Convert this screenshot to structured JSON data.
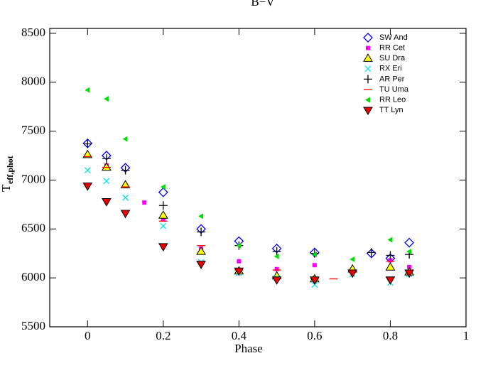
{
  "chart_data": {
    "type": "scatter",
    "title": "B−V",
    "x_label": "Phase",
    "y_label": "T",
    "y_label_sub": "eff,phot",
    "xlim": [
      -0.1,
      1.0
    ],
    "ylim": [
      5500,
      8550
    ],
    "xticks": [
      0,
      0.2,
      0.4,
      0.6,
      0.8,
      1
    ],
    "yticks": [
      5500,
      6000,
      6500,
      7000,
      7500,
      8000,
      8500
    ],
    "legend": "upper right",
    "series": [
      {
        "name": "SW And",
        "color": "#0000ff",
        "marker": "diamond",
        "x": [
          0,
          0.05,
          0.1,
          0.2,
          0.3,
          0.4,
          0.5,
          0.6,
          0.75,
          0.8,
          0.85
        ],
        "values": [
          7375,
          7250,
          7125,
          6875,
          6500,
          6375,
          6300,
          6260,
          6250,
          6200,
          6360
        ]
      },
      {
        "name": "RR Cet",
        "color": "#ff00ff",
        "marker": "square",
        "x": [
          0,
          0.05,
          0.1,
          0.15,
          0.2,
          0.3,
          0.4,
          0.5,
          0.6,
          0.7,
          0.8,
          0.85
        ],
        "values": [
          7250,
          7150,
          6950,
          6770,
          6600,
          6300,
          6170,
          6090,
          6130,
          6060,
          6180,
          6110
        ]
      },
      {
        "name": "SU Dra",
        "color": "#ffff00",
        "marker": "triangle-up",
        "x": [
          0,
          0.05,
          0.1,
          0.2,
          0.3,
          0.4,
          0.5,
          0.6,
          0.7,
          0.8,
          0.85
        ],
        "values": [
          7260,
          7130,
          6950,
          6640,
          6270,
          6070,
          6020,
          5990,
          6090,
          6110,
          6060
        ]
      },
      {
        "name": "RX Eri",
        "color": "#00e5ee",
        "marker": "x",
        "x": [
          0,
          0.05,
          0.1,
          0.2,
          0.3,
          0.4,
          0.5,
          0.6,
          0.7,
          0.8,
          0.85
        ],
        "values": [
          7100,
          6990,
          6820,
          6530,
          6160,
          6050,
          6000,
          5930,
          6040,
          5950,
          6040
        ]
      },
      {
        "name": "AR Per",
        "color": "#000000",
        "marker": "plus",
        "x": [
          0,
          0.05,
          0.1,
          0.2,
          0.3,
          0.4,
          0.5,
          0.6,
          0.75,
          0.8,
          0.85
        ],
        "values": [
          7370,
          7220,
          7100,
          6740,
          6470,
          6330,
          6270,
          6250,
          6260,
          6230,
          6240
        ]
      },
      {
        "name": "TU Uma",
        "color": "#ff0000",
        "marker": "dash",
        "x": [
          0,
          0.05,
          0.1,
          0.2,
          0.3,
          0.4,
          0.5,
          0.6,
          0.65,
          0.8,
          0.85
        ],
        "values": [
          7240,
          7130,
          6930,
          6580,
          6330,
          6080,
          6080,
          5990,
          5990,
          6170,
          6080
        ]
      },
      {
        "name": "RR Leo",
        "color": "#00dd00",
        "marker": "triangle-left",
        "x": [
          0,
          0.05,
          0.1,
          0.2,
          0.3,
          0.4,
          0.5,
          0.6,
          0.7,
          0.8,
          0.85
        ],
        "values": [
          7920,
          7830,
          7420,
          6930,
          6630,
          6330,
          6220,
          6240,
          6190,
          6390,
          6270
        ]
      },
      {
        "name": "TT Lyn",
        "color": "#ee0000",
        "marker": "triangle-down",
        "x": [
          0,
          0.05,
          0.1,
          0.2,
          0.3,
          0.4,
          0.5,
          0.6,
          0.7,
          0.8,
          0.85
        ],
        "values": [
          6940,
          6780,
          6660,
          6320,
          6140,
          6070,
          5980,
          5980,
          6050,
          5980,
          6050
        ]
      }
    ]
  }
}
